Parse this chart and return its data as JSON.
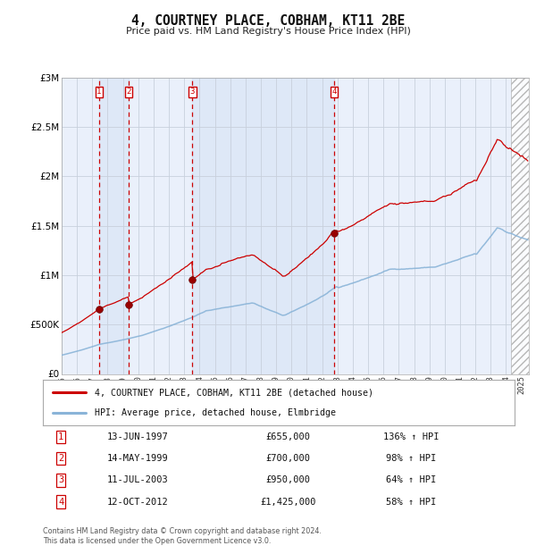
{
  "title": "4, COURTNEY PLACE, COBHAM, KT11 2BE",
  "subtitle": "Price paid vs. HM Land Registry's House Price Index (HPI)",
  "footer": "Contains HM Land Registry data © Crown copyright and database right 2024.\nThis data is licensed under the Open Government Licence v3.0.",
  "legend_line1": "4, COURTNEY PLACE, COBHAM, KT11 2BE (detached house)",
  "legend_line2": "HPI: Average price, detached house, Elmbridge",
  "purchases": [
    {
      "num": 1,
      "date": "13-JUN-1997",
      "price": 655000,
      "pct": "136%",
      "year": 1997.45
    },
    {
      "num": 2,
      "date": "14-MAY-1999",
      "price": 700000,
      "pct": "98%",
      "year": 1999.37
    },
    {
      "num": 3,
      "date": "11-JUL-2003",
      "price": 950000,
      "pct": "64%",
      "year": 2003.53
    },
    {
      "num": 4,
      "date": "12-OCT-2012",
      "price": 1425000,
      "pct": "58%",
      "year": 2012.78
    }
  ],
  "xlim": [
    1995.0,
    2025.5
  ],
  "ylim": [
    0,
    3000000
  ],
  "yticks": [
    0,
    500000,
    1000000,
    1500000,
    2000000,
    2500000,
    3000000
  ],
  "ytick_labels": [
    "£0",
    "£500K",
    "£1M",
    "£1.5M",
    "£2M",
    "£2.5M",
    "£3M"
  ],
  "bg_color": "#eaf0fb",
  "red_line_color": "#cc0000",
  "blue_line_color": "#8ab4d8",
  "grid_color": "#c8d0dc",
  "purchase_box_color": "#cc0000",
  "dashed_line_color": "#cc0000",
  "xtick_years": [
    1995,
    1996,
    1997,
    1998,
    1999,
    2000,
    2001,
    2002,
    2003,
    2004,
    2005,
    2006,
    2007,
    2008,
    2009,
    2010,
    2011,
    2012,
    2013,
    2014,
    2015,
    2016,
    2017,
    2018,
    2019,
    2020,
    2021,
    2022,
    2023,
    2024,
    2025
  ]
}
